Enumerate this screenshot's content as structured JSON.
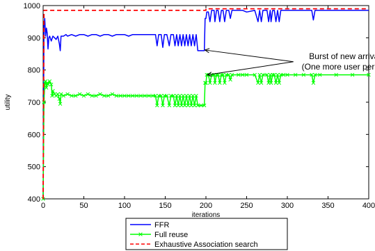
{
  "chart_data": {
    "type": "line",
    "title": "",
    "xlabel": "iterations",
    "ylabel": "utility",
    "xlim": [
      0,
      400
    ],
    "ylim": [
      400,
      1000
    ],
    "xticks": [
      0,
      50,
      100,
      150,
      200,
      250,
      300,
      350,
      400
    ],
    "yticks": [
      400,
      500,
      600,
      700,
      800,
      900,
      1000
    ],
    "grid": false,
    "legend_position": "bottom-center",
    "annotation": {
      "lines": [
        "Burst of new arrivals",
        "(One more user per cell)"
      ],
      "arrow_targets": [
        [
          197,
          862
        ],
        [
          200,
          785
        ]
      ],
      "text_anchor_data": [
        292,
        817
      ]
    },
    "series": [
      {
        "name": "FFR",
        "color": "#0000ff",
        "style": "solid",
        "points": [
          [
            0,
            400
          ],
          [
            1,
            940
          ],
          [
            2,
            960
          ],
          [
            3,
            905
          ],
          [
            4,
            930
          ],
          [
            5,
            915
          ],
          [
            6,
            865
          ],
          [
            7,
            900
          ],
          [
            8,
            905
          ],
          [
            10,
            890
          ],
          [
            12,
            905
          ],
          [
            14,
            900
          ],
          [
            16,
            895
          ],
          [
            18,
            905
          ],
          [
            20,
            880
          ],
          [
            21,
            860
          ],
          [
            22,
            905
          ],
          [
            25,
            905
          ],
          [
            28,
            910
          ],
          [
            30,
            905
          ],
          [
            35,
            910
          ],
          [
            40,
            905
          ],
          [
            45,
            910
          ],
          [
            50,
            910
          ],
          [
            55,
            905
          ],
          [
            60,
            910
          ],
          [
            65,
            910
          ],
          [
            70,
            905
          ],
          [
            75,
            910
          ],
          [
            80,
            910
          ],
          [
            85,
            905
          ],
          [
            90,
            910
          ],
          [
            95,
            910
          ],
          [
            100,
            910
          ],
          [
            105,
            905
          ],
          [
            110,
            910
          ],
          [
            115,
            910
          ],
          [
            120,
            910
          ],
          [
            125,
            910
          ],
          [
            130,
            910
          ],
          [
            135,
            910
          ],
          [
            138,
            910
          ],
          [
            140,
            875
          ],
          [
            142,
            910
          ],
          [
            145,
            910
          ],
          [
            147,
            870
          ],
          [
            149,
            910
          ],
          [
            152,
            910
          ],
          [
            155,
            875
          ],
          [
            157,
            910
          ],
          [
            160,
            910
          ],
          [
            162,
            875
          ],
          [
            164,
            910
          ],
          [
            166,
            875
          ],
          [
            168,
            910
          ],
          [
            170,
            875
          ],
          [
            172,
            910
          ],
          [
            174,
            875
          ],
          [
            176,
            910
          ],
          [
            178,
            875
          ],
          [
            180,
            910
          ],
          [
            182,
            875
          ],
          [
            184,
            910
          ],
          [
            186,
            875
          ],
          [
            188,
            910
          ],
          [
            190,
            860
          ],
          [
            194,
            860
          ],
          [
            198,
            860
          ],
          [
            199,
            960
          ],
          [
            200,
            960
          ],
          [
            201,
            980
          ],
          [
            203,
            980
          ],
          [
            205,
            950
          ],
          [
            207,
            985
          ],
          [
            210,
            985
          ],
          [
            211,
            950
          ],
          [
            213,
            985
          ],
          [
            215,
            985
          ],
          [
            217,
            950
          ],
          [
            219,
            985
          ],
          [
            221,
            985
          ],
          [
            223,
            950
          ],
          [
            225,
            985
          ],
          [
            228,
            985
          ],
          [
            230,
            960
          ],
          [
            232,
            985
          ],
          [
            240,
            985
          ],
          [
            245,
            985
          ],
          [
            250,
            980
          ],
          [
            260,
            985
          ],
          [
            264,
            950
          ],
          [
            266,
            985
          ],
          [
            268,
            950
          ],
          [
            270,
            985
          ],
          [
            275,
            985
          ],
          [
            277,
            950
          ],
          [
            279,
            985
          ],
          [
            280,
            950
          ],
          [
            282,
            985
          ],
          [
            284,
            985
          ],
          [
            286,
            950
          ],
          [
            288,
            985
          ],
          [
            290,
            950
          ],
          [
            292,
            985
          ],
          [
            295,
            985
          ],
          [
            300,
            985
          ],
          [
            310,
            985
          ],
          [
            320,
            985
          ],
          [
            330,
            985
          ],
          [
            332,
            955
          ],
          [
            334,
            985
          ],
          [
            340,
            985
          ],
          [
            360,
            985
          ],
          [
            380,
            985
          ],
          [
            400,
            985
          ]
        ]
      },
      {
        "name": "Full reuse",
        "color": "#00ff00",
        "style": "solid-x-markers",
        "points": [
          [
            0,
            400
          ],
          [
            1,
            700
          ],
          [
            2,
            760
          ],
          [
            3,
            765
          ],
          [
            4,
            745
          ],
          [
            5,
            760
          ],
          [
            6,
            755
          ],
          [
            8,
            765
          ],
          [
            10,
            755
          ],
          [
            11,
            720
          ],
          [
            12,
            735
          ],
          [
            14,
            725
          ],
          [
            16,
            720
          ],
          [
            18,
            725
          ],
          [
            20,
            710
          ],
          [
            21,
            695
          ],
          [
            22,
            725
          ],
          [
            25,
            720
          ],
          [
            30,
            725
          ],
          [
            35,
            720
          ],
          [
            40,
            720
          ],
          [
            45,
            725
          ],
          [
            50,
            720
          ],
          [
            55,
            725
          ],
          [
            60,
            720
          ],
          [
            65,
            720
          ],
          [
            70,
            725
          ],
          [
            75,
            720
          ],
          [
            80,
            720
          ],
          [
            85,
            725
          ],
          [
            90,
            720
          ],
          [
            95,
            720
          ],
          [
            100,
            720
          ],
          [
            105,
            720
          ],
          [
            110,
            720
          ],
          [
            115,
            720
          ],
          [
            120,
            720
          ],
          [
            125,
            720
          ],
          [
            130,
            720
          ],
          [
            135,
            720
          ],
          [
            138,
            720
          ],
          [
            140,
            690
          ],
          [
            142,
            720
          ],
          [
            145,
            720
          ],
          [
            147,
            690
          ],
          [
            149,
            720
          ],
          [
            152,
            720
          ],
          [
            155,
            690
          ],
          [
            157,
            720
          ],
          [
            160,
            720
          ],
          [
            162,
            690
          ],
          [
            164,
            720
          ],
          [
            166,
            690
          ],
          [
            168,
            720
          ],
          [
            170,
            690
          ],
          [
            172,
            720
          ],
          [
            174,
            690
          ],
          [
            176,
            720
          ],
          [
            178,
            690
          ],
          [
            180,
            720
          ],
          [
            182,
            690
          ],
          [
            184,
            720
          ],
          [
            186,
            690
          ],
          [
            188,
            720
          ],
          [
            190,
            690
          ],
          [
            194,
            690
          ],
          [
            198,
            690
          ],
          [
            199,
            760
          ],
          [
            200,
            760
          ],
          [
            201,
            785
          ],
          [
            203,
            785
          ],
          [
            205,
            760
          ],
          [
            207,
            785
          ],
          [
            210,
            785
          ],
          [
            211,
            760
          ],
          [
            213,
            785
          ],
          [
            215,
            785
          ],
          [
            217,
            760
          ],
          [
            219,
            785
          ],
          [
            221,
            785
          ],
          [
            223,
            760
          ],
          [
            225,
            785
          ],
          [
            228,
            785
          ],
          [
            230,
            770
          ],
          [
            232,
            785
          ],
          [
            240,
            785
          ],
          [
            245,
            785
          ],
          [
            250,
            785
          ],
          [
            260,
            785
          ],
          [
            264,
            760
          ],
          [
            266,
            785
          ],
          [
            268,
            760
          ],
          [
            270,
            785
          ],
          [
            275,
            785
          ],
          [
            277,
            760
          ],
          [
            279,
            785
          ],
          [
            280,
            760
          ],
          [
            282,
            785
          ],
          [
            284,
            785
          ],
          [
            286,
            760
          ],
          [
            288,
            785
          ],
          [
            290,
            760
          ],
          [
            292,
            785
          ],
          [
            295,
            785
          ],
          [
            300,
            785
          ],
          [
            310,
            785
          ],
          [
            320,
            785
          ],
          [
            330,
            785
          ],
          [
            332,
            760
          ],
          [
            334,
            785
          ],
          [
            340,
            785
          ],
          [
            360,
            785
          ],
          [
            380,
            785
          ],
          [
            400,
            785
          ]
        ]
      },
      {
        "name": "Exhaustive Association search",
        "color": "#ff0000",
        "style": "dashed",
        "points": [
          [
            0,
            400
          ],
          [
            1,
            985
          ],
          [
            4,
            985
          ],
          [
            4,
            985
          ],
          [
            200,
            985
          ],
          [
            200,
            990
          ],
          [
            400,
            990
          ]
        ]
      }
    ]
  }
}
